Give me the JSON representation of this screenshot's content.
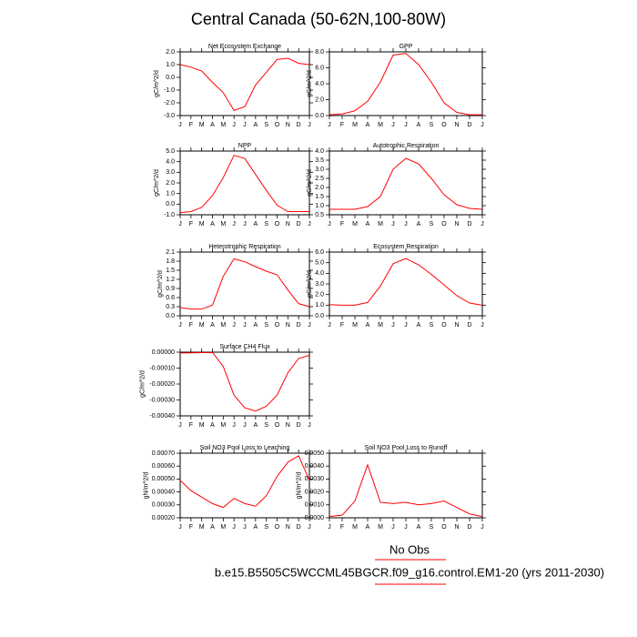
{
  "title": "Central Canada (50-62N,100-80W)",
  "chart_data": [
    {
      "type": "line",
      "title": "Net Ecosystem Exchange",
      "y_label": "gC/m^2/d",
      "categories": [
        "J",
        "F",
        "M",
        "A",
        "M",
        "J",
        "J",
        "A",
        "S",
        "O",
        "N",
        "D",
        "J"
      ],
      "series": [
        {
          "color": "#ff0000",
          "values": [
            1.0,
            0.8,
            0.5,
            -0.4,
            -1.2,
            -2.6,
            -2.3,
            -0.6,
            0.4,
            1.4,
            1.5,
            1.1,
            1.0
          ]
        }
      ],
      "ylim": [
        -3,
        2
      ],
      "yticks": [
        {
          "value": -3,
          "label": "-3.0"
        },
        {
          "value": -2,
          "label": "-2.0"
        },
        {
          "value": -1,
          "label": "-1.0"
        },
        {
          "value": 0,
          "label": "0.0"
        },
        {
          "value": 1,
          "label": "1.0"
        },
        {
          "value": 2,
          "label": "2.0"
        }
      ]
    },
    {
      "type": "line",
      "title": "GPP",
      "y_label": "gC/m^2/d",
      "categories": [
        "J",
        "F",
        "M",
        "A",
        "M",
        "J",
        "J",
        "A",
        "S",
        "O",
        "N",
        "D",
        "J"
      ],
      "series": [
        {
          "color": "#ff0000",
          "values": [
            0.1,
            0.2,
            0.6,
            1.8,
            4.2,
            7.6,
            7.8,
            6.4,
            4.2,
            1.6,
            0.4,
            0.1,
            0.1
          ]
        }
      ],
      "ylim": [
        0,
        8
      ],
      "yticks": [
        {
          "value": 0,
          "label": "0.0"
        },
        {
          "value": 2,
          "label": "2.0"
        },
        {
          "value": 4,
          "label": "4.0"
        },
        {
          "value": 6,
          "label": "6.0"
        },
        {
          "value": 8,
          "label": "8.0"
        }
      ]
    },
    {
      "type": "line",
      "title": "NPP",
      "y_label": "gC/m^2/d",
      "categories": [
        "J",
        "F",
        "M",
        "A",
        "M",
        "J",
        "J",
        "A",
        "S",
        "O",
        "N",
        "D",
        "J"
      ],
      "series": [
        {
          "color": "#ff0000",
          "values": [
            -0.8,
            -0.7,
            -0.3,
            0.8,
            2.5,
            4.6,
            4.3,
            2.8,
            1.3,
            -0.1,
            -0.7,
            -0.7,
            -0.7
          ]
        }
      ],
      "ylim": [
        -1,
        5
      ],
      "yticks": [
        {
          "value": -1,
          "label": "-1.0"
        },
        {
          "value": 0,
          "label": "0.0"
        },
        {
          "value": 1,
          "label": "1.0"
        },
        {
          "value": 2,
          "label": "2.0"
        },
        {
          "value": 3,
          "label": "3.0"
        },
        {
          "value": 4,
          "label": "4.0"
        },
        {
          "value": 5,
          "label": "5.0"
        }
      ]
    },
    {
      "type": "line",
      "title": "Autotrophic Respiration",
      "y_label": "gC/m^2/d",
      "categories": [
        "J",
        "F",
        "M",
        "A",
        "M",
        "J",
        "J",
        "A",
        "S",
        "O",
        "N",
        "D",
        "J"
      ],
      "series": [
        {
          "color": "#ff0000",
          "values": [
            0.8,
            0.8,
            0.8,
            0.95,
            1.5,
            3.0,
            3.6,
            3.3,
            2.5,
            1.6,
            1.05,
            0.85,
            0.8
          ]
        }
      ],
      "ylim": [
        0.5,
        4
      ],
      "yticks": [
        {
          "value": 0.5,
          "label": "0.5"
        },
        {
          "value": 1,
          "label": "1.0"
        },
        {
          "value": 1.5,
          "label": "1.5"
        },
        {
          "value": 2,
          "label": "2.0"
        },
        {
          "value": 2.5,
          "label": "2.5"
        },
        {
          "value": 3,
          "label": "3.0"
        },
        {
          "value": 3.5,
          "label": "3.5"
        },
        {
          "value": 4,
          "label": "4.0"
        }
      ]
    },
    {
      "type": "line",
      "title": "Heterotrophic Respiration",
      "y_label": "gC/m^2/d",
      "categories": [
        "J",
        "F",
        "M",
        "A",
        "M",
        "J",
        "J",
        "A",
        "S",
        "O",
        "N",
        "D",
        "J"
      ],
      "series": [
        {
          "color": "#ff0000",
          "values": [
            0.27,
            0.22,
            0.22,
            0.35,
            1.3,
            1.88,
            1.78,
            1.62,
            1.47,
            1.35,
            0.85,
            0.4,
            0.3
          ]
        }
      ],
      "ylim": [
        0,
        2.1
      ],
      "yticks": [
        {
          "value": 0,
          "label": "0.0"
        },
        {
          "value": 0.3,
          "label": "0.3"
        },
        {
          "value": 0.6,
          "label": "0.6"
        },
        {
          "value": 0.9,
          "label": "0.9"
        },
        {
          "value": 1.2,
          "label": "1.2"
        },
        {
          "value": 1.5,
          "label": "1.5"
        },
        {
          "value": 1.8,
          "label": "1.8"
        },
        {
          "value": 2.1,
          "label": "2.1"
        }
      ]
    },
    {
      "type": "line",
      "title": "Ecosystem Respiration",
      "y_label": "gC/m^2/d",
      "categories": [
        "J",
        "F",
        "M",
        "A",
        "M",
        "J",
        "J",
        "A",
        "S",
        "O",
        "N",
        "D",
        "J"
      ],
      "series": [
        {
          "color": "#ff0000",
          "values": [
            1.05,
            1.0,
            1.0,
            1.25,
            2.8,
            4.9,
            5.4,
            4.8,
            3.9,
            2.9,
            1.9,
            1.2,
            1.0
          ]
        }
      ],
      "ylim": [
        0,
        6
      ],
      "yticks": [
        {
          "value": 0,
          "label": "0.0"
        },
        {
          "value": 1,
          "label": "1.0"
        },
        {
          "value": 2,
          "label": "2.0"
        },
        {
          "value": 3,
          "label": "3.0"
        },
        {
          "value": 4,
          "label": "4.0"
        },
        {
          "value": 5,
          "label": "5.0"
        },
        {
          "value": 6,
          "label": "6.0"
        }
      ]
    },
    {
      "type": "line",
      "title": "Surface CH4 Flux",
      "y_label": "gC/m^2/d",
      "categories": [
        "J",
        "F",
        "M",
        "A",
        "M",
        "J",
        "J",
        "A",
        "S",
        "O",
        "N",
        "D",
        "J"
      ],
      "series": [
        {
          "color": "#ff0000",
          "values": [
            -5e-06,
            -4e-06,
            -3e-06,
            -2e-06,
            -9e-05,
            -0.00027,
            -0.00035,
            -0.00037,
            -0.00034,
            -0.00027,
            -0.00013,
            -4e-05,
            -2e-05
          ]
        }
      ],
      "ylim": [
        -0.0004,
        0
      ],
      "yticks": [
        {
          "value": -0.0004,
          "label": "-0.00040"
        },
        {
          "value": -0.0003,
          "label": "-0.00030"
        },
        {
          "value": -0.0002,
          "label": "-0.00020"
        },
        {
          "value": -0.0001,
          "label": "-0.00010"
        },
        {
          "value": 0,
          "label": "0.00000"
        }
      ]
    },
    {
      "type": "line",
      "title": "Soil NO3 Pool Loss to Leaching",
      "y_label": "gN/m^2/d",
      "categories": [
        "J",
        "F",
        "M",
        "A",
        "M",
        "J",
        "J",
        "A",
        "S",
        "O",
        "N",
        "D",
        "J"
      ],
      "series": [
        {
          "color": "#ff0000",
          "values": [
            0.00049,
            0.00041,
            0.00036,
            0.00031,
            0.00028,
            0.00035,
            0.00031,
            0.00029,
            0.00037,
            0.00052,
            0.00063,
            0.00068,
            0.00049
          ]
        }
      ],
      "ylim": [
        0.0002,
        0.0007
      ],
      "yticks": [
        {
          "value": 0.0002,
          "label": "0.00020"
        },
        {
          "value": 0.0003,
          "label": "0.00030"
        },
        {
          "value": 0.0004,
          "label": "0.00040"
        },
        {
          "value": 0.0005,
          "label": "0.00050"
        },
        {
          "value": 0.0006,
          "label": "0.00060"
        },
        {
          "value": 0.0007,
          "label": "0.00070"
        }
      ]
    },
    {
      "type": "line",
      "title": "Soil NO3 Pool Loss to Runoff",
      "y_label": "gN/m^2/d",
      "categories": [
        "J",
        "F",
        "M",
        "A",
        "M",
        "J",
        "J",
        "A",
        "S",
        "O",
        "N",
        "D",
        "J"
      ],
      "series": [
        {
          "color": "#ff0000",
          "values": [
            0.0001,
            0.0002,
            0.0013,
            0.0041,
            0.0012,
            0.0011,
            0.0012,
            0.001,
            0.0011,
            0.0013,
            0.0008,
            0.0003,
            0.0001
          ]
        }
      ],
      "ylim": [
        0,
        0.005
      ],
      "yticks": [
        {
          "value": 0,
          "label": "0.0000"
        },
        {
          "value": 0.001,
          "label": "0.0010"
        },
        {
          "value": 0.002,
          "label": "0.0020"
        },
        {
          "value": 0.003,
          "label": "0.0030"
        },
        {
          "value": 0.004,
          "label": "0.0040"
        },
        {
          "value": 0.005,
          "label": "0.0050"
        }
      ]
    }
  ],
  "footer": {
    "obs": "No Obs",
    "case": "b.e15.B5505C5WCCML45BGCR.f09_g16.control.EM1-20 (yrs 2011-2030)"
  }
}
